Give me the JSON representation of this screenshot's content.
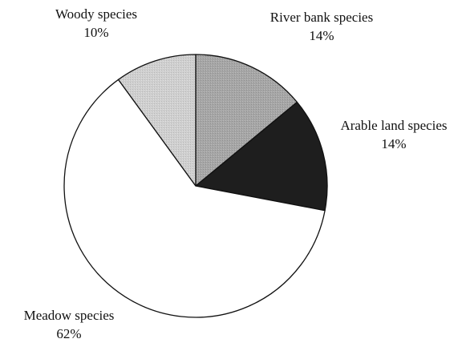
{
  "chart_data": {
    "type": "pie",
    "title": "",
    "slices": [
      {
        "label": "River bank species",
        "percent_label": "14%",
        "value": 14,
        "color": "#a6a6a6"
      },
      {
        "label": "Arable land species",
        "percent_label": "14%",
        "value": 14,
        "color": "#1e1e1e"
      },
      {
        "label": "Meadow species",
        "percent_label": "62%",
        "value": 62,
        "color": "#ffffff"
      },
      {
        "label": "Woody species",
        "percent_label": "10%",
        "value": 10,
        "color": "#cfcfcf"
      }
    ],
    "start_angle_deg": 0,
    "direction": "clockwise",
    "legend": "none"
  }
}
